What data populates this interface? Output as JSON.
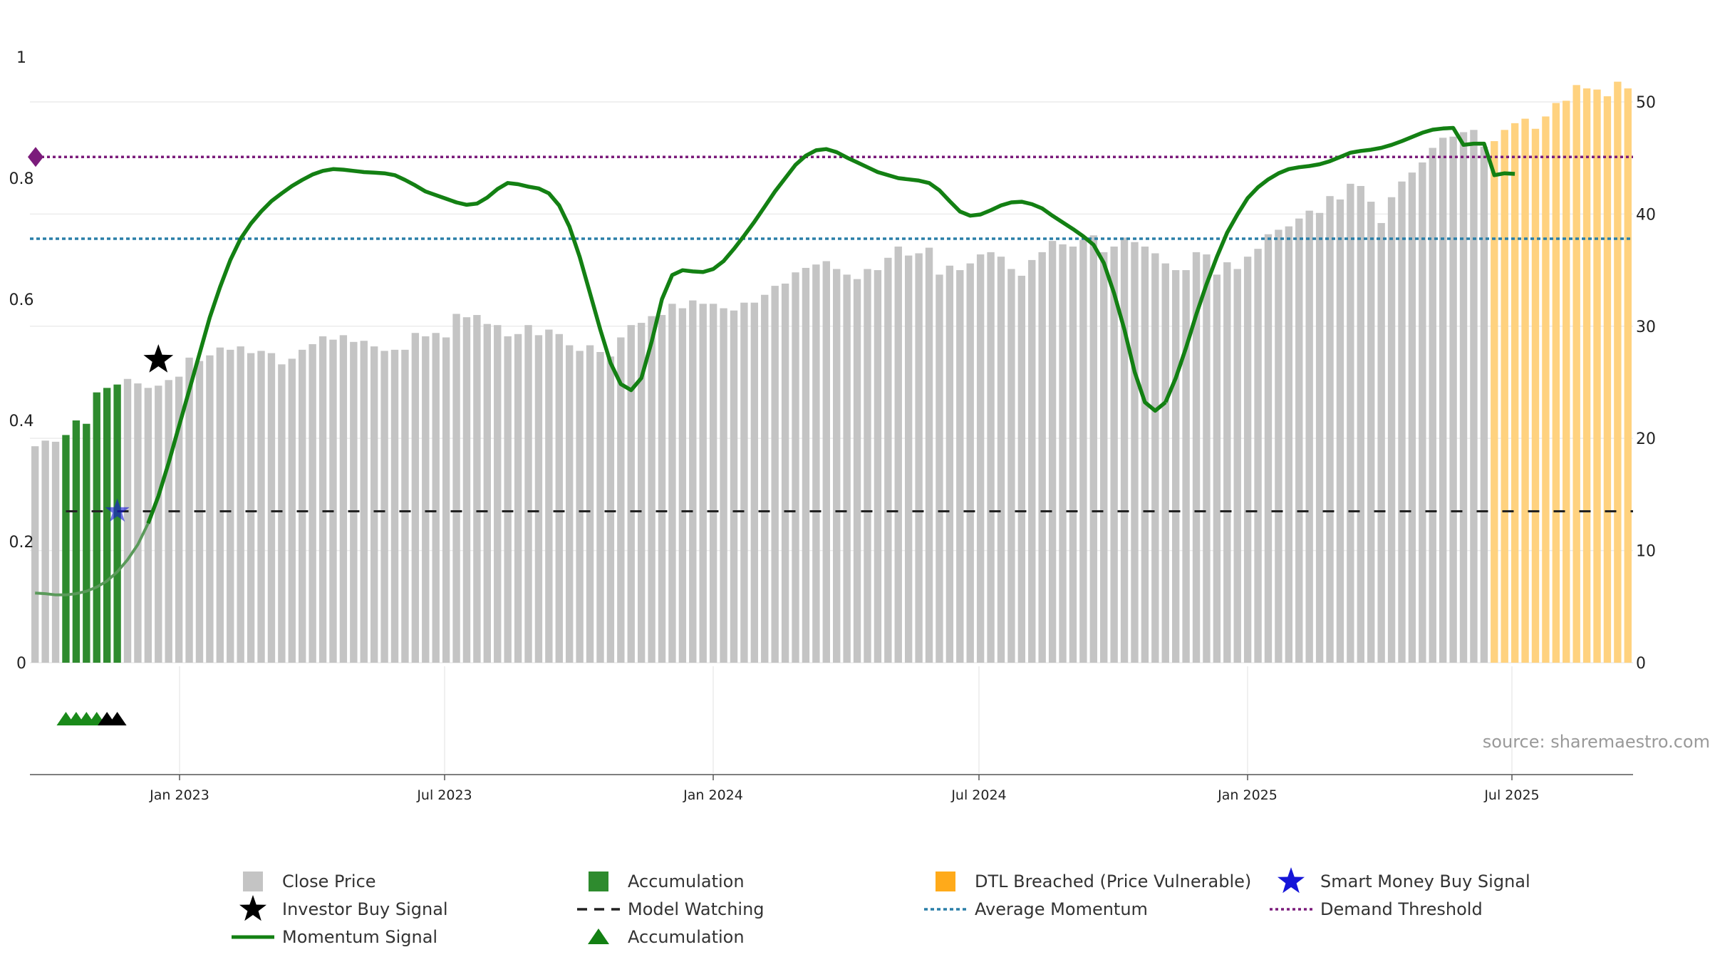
{
  "chart_data": {
    "type": "bar",
    "title": "",
    "source": "source: sharemaestro.com",
    "x_tick_labels": [
      "Jan 2023",
      "Jul 2023",
      "Jan 2024",
      "Jul 2024",
      "Jan 2025",
      "Jul 2025"
    ],
    "left_axis": {
      "ylim": [
        0,
        1
      ],
      "ticks": [
        "0",
        "0.2",
        "0.4",
        "0.6",
        "0.8",
        "1"
      ]
    },
    "right_axis": {
      "ylim": [
        0,
        54
      ],
      "ticks": [
        "0",
        "10",
        "20",
        "30",
        "40",
        "50"
      ]
    },
    "close_price": [
      19.3,
      19.8,
      19.7,
      20.3,
      21.6,
      21.3,
      24.1,
      24.5,
      24.8,
      25.3,
      24.9,
      24.5,
      24.7,
      25.2,
      25.5,
      27.2,
      26.9,
      27.4,
      28.1,
      27.9,
      28.2,
      27.6,
      27.8,
      27.6,
      26.6,
      27.1,
      27.9,
      28.4,
      29.1,
      28.8,
      29.2,
      28.6,
      28.7,
      28.2,
      27.8,
      27.9,
      27.9,
      29.4,
      29.1,
      29.4,
      29.0,
      31.1,
      30.8,
      31.0,
      30.2,
      30.1,
      29.1,
      29.3,
      30.1,
      29.2,
      29.7,
      29.3,
      28.3,
      27.8,
      28.3,
      27.7,
      27.3,
      29.0,
      30.1,
      30.3,
      30.9,
      31.0,
      32.0,
      31.6,
      32.3,
      32.0,
      32.0,
      31.6,
      31.4,
      32.1,
      32.1,
      32.8,
      33.6,
      33.8,
      34.8,
      35.2,
      35.5,
      35.8,
      35.1,
      34.6,
      34.2,
      35.1,
      35.0,
      36.1,
      37.1,
      36.3,
      36.5,
      37.0,
      34.6,
      35.4,
      35.0,
      35.6,
      36.4,
      36.6,
      36.2,
      35.1,
      34.5,
      35.9,
      36.6,
      37.6,
      37.3,
      37.1,
      37.7,
      38.1,
      36.6,
      37.1,
      37.9,
      37.5,
      37.1,
      36.5,
      35.6,
      35.0,
      35.0,
      36.6,
      36.4,
      34.6,
      35.7,
      35.1,
      36.2,
      36.9,
      38.2,
      38.6,
      38.9,
      39.6,
      40.3,
      40.1,
      41.6,
      41.3,
      42.7,
      42.5,
      41.1,
      39.2,
      41.5,
      42.9,
      43.7,
      44.6,
      45.9,
      46.8,
      46.9,
      47.3,
      47.5,
      46.0,
      46.5,
      47.5,
      48.1,
      48.5,
      47.6,
      48.7,
      49.9,
      50.1,
      51.5,
      51.2,
      51.1,
      50.5,
      51.8,
      51.2
    ],
    "accumulation_bars": [
      3,
      4,
      5,
      6,
      7,
      8
    ],
    "dtl_breached_start": 142,
    "momentum_signal": [
      0.115,
      0.114,
      0.112,
      0.112,
      0.114,
      0.118,
      0.125,
      0.135,
      0.15,
      0.17,
      0.195,
      0.23,
      0.275,
      0.33,
      0.39,
      0.45,
      0.51,
      0.57,
      0.62,
      0.665,
      0.7,
      0.725,
      0.745,
      0.762,
      0.775,
      0.787,
      0.797,
      0.806,
      0.812,
      0.815,
      0.814,
      0.812,
      0.81,
      0.809,
      0.808,
      0.805,
      0.797,
      0.788,
      0.778,
      0.772,
      0.766,
      0.76,
      0.756,
      0.758,
      0.768,
      0.782,
      0.792,
      0.79,
      0.786,
      0.783,
      0.775,
      0.755,
      0.72,
      0.67,
      0.61,
      0.55,
      0.495,
      0.46,
      0.45,
      0.47,
      0.53,
      0.6,
      0.64,
      0.648,
      0.646,
      0.645,
      0.65,
      0.663,
      0.683,
      0.705,
      0.728,
      0.753,
      0.778,
      0.8,
      0.822,
      0.837,
      0.846,
      0.848,
      0.843,
      0.834,
      0.826,
      0.818,
      0.81,
      0.805,
      0.8,
      0.798,
      0.796,
      0.792,
      0.78,
      0.762,
      0.745,
      0.738,
      0.74,
      0.747,
      0.755,
      0.76,
      0.761,
      0.757,
      0.75,
      0.738,
      0.727,
      0.716,
      0.704,
      0.69,
      0.66,
      0.61,
      0.55,
      0.48,
      0.43,
      0.416,
      0.43,
      0.47,
      0.52,
      0.575,
      0.625,
      0.67,
      0.71,
      0.74,
      0.767,
      0.785,
      0.798,
      0.808,
      0.815,
      0.818,
      0.82,
      0.823,
      0.828,
      0.835,
      0.842,
      0.845,
      0.847,
      0.85,
      0.855,
      0.861,
      0.868,
      0.875,
      0.88,
      0.882,
      0.883,
      0.855,
      0.857,
      0.857,
      0.805,
      0.808,
      0.807
    ],
    "investor_buy_signal": [
      {
        "bar": 12,
        "value": 0.5
      }
    ],
    "smart_money_buy_signal": [
      {
        "bar": 8,
        "value": 0.25
      }
    ],
    "model_watching_level": 0.25,
    "average_momentum": 0.7,
    "demand_threshold": 0.835,
    "accumulation_markers": [
      {
        "bar": 3,
        "color": "#1a8a1a"
      },
      {
        "bar": 4,
        "color": "#1a8a1a"
      },
      {
        "bar": 5,
        "color": "#1a8a1a"
      },
      {
        "bar": 6,
        "color": "#1a8a1a"
      },
      {
        "bar": 7,
        "color": "#000000"
      },
      {
        "bar": 8,
        "color": "#000000"
      }
    ],
    "legend": [
      {
        "key": "close_price",
        "label": "Close Price"
      },
      {
        "key": "accumulation_bar",
        "label": "Accumulation"
      },
      {
        "key": "dtl",
        "label": "DTL Breached (Price Vulnerable)"
      },
      {
        "key": "smart_money",
        "label": "Smart Money Buy Signal"
      },
      {
        "key": "investor",
        "label": "Investor Buy Signal"
      },
      {
        "key": "model_watching",
        "label": "Model Watching"
      },
      {
        "key": "avg_momentum",
        "label": "Average Momentum"
      },
      {
        "key": "demand_threshold",
        "label": "Demand Threshold"
      },
      {
        "key": "momentum",
        "label": "Momentum Signal"
      },
      {
        "key": "accumulation_marker",
        "label": "Accumulation"
      }
    ],
    "colors": {
      "close_price": "#c4c4c4",
      "accumulation": "#2e8b2e",
      "dtl": "#ffd27f",
      "momentum": "#138013",
      "momentum_light": "#5a9a5a",
      "model_watching": "#222222",
      "average_momentum": "#2a7fa8",
      "demand_threshold": "#7b1c7b",
      "smart_money": "#1515d8",
      "investor": "#000000"
    }
  }
}
